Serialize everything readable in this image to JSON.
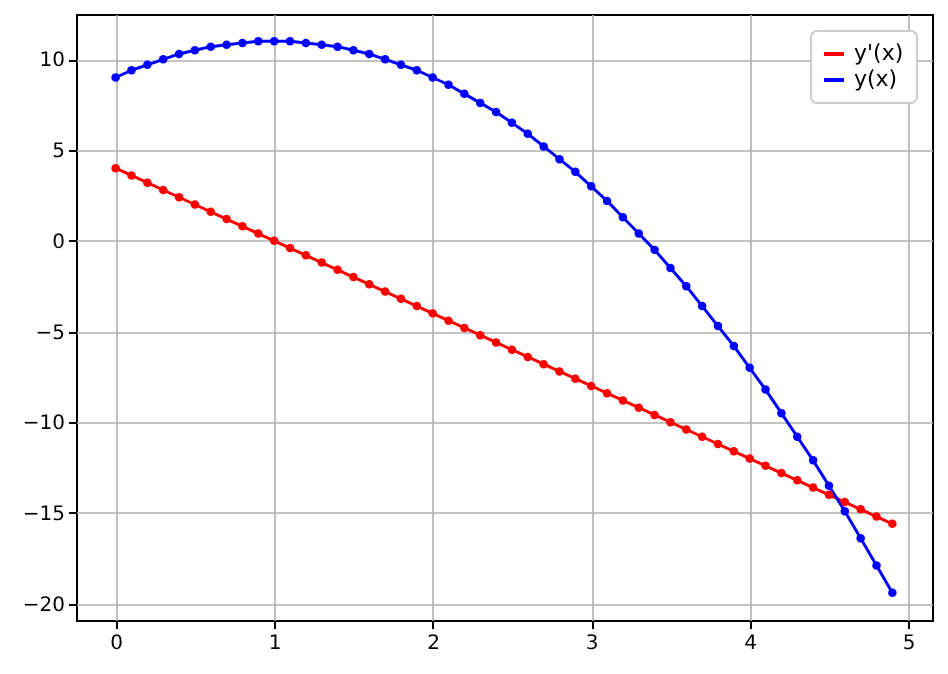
{
  "chart_data": {
    "type": "line",
    "x": [
      0,
      0.1,
      0.2,
      0.3,
      0.4,
      0.5,
      0.6,
      0.7,
      0.8,
      0.9,
      1,
      1.1,
      1.2,
      1.3,
      1.4,
      1.5,
      1.6,
      1.7,
      1.8,
      1.9,
      2,
      2.1,
      2.2,
      2.3,
      2.4,
      2.5,
      2.6,
      2.7,
      2.8,
      2.9,
      3,
      3.1,
      3.2,
      3.3,
      3.4,
      3.5,
      3.6,
      3.7,
      3.8,
      3.9,
      4,
      4.1,
      4.2,
      4.3,
      4.4,
      4.5,
      4.6,
      4.7,
      4.8,
      4.9
    ],
    "series": [
      {
        "name": "y'(x)",
        "color": "#ff0000",
        "values": [
          4,
          3.6,
          3.2,
          2.8,
          2.4,
          2,
          1.6,
          1.2,
          0.8,
          0.4,
          0,
          -0.4,
          -0.8,
          -1.2,
          -1.6,
          -2,
          -2.4,
          -2.8,
          -3.2,
          -3.6,
          -4,
          -4.4,
          -4.8,
          -5.2,
          -5.6,
          -6,
          -6.4,
          -6.8,
          -7.2,
          -7.6,
          -8,
          -8.4,
          -8.8,
          -9.2,
          -9.6,
          -10,
          -10.4,
          -10.8,
          -11.2,
          -11.6,
          -12,
          -12.4,
          -12.8,
          -13.2,
          -13.6,
          -14,
          -14.4,
          -14.8,
          -15.2,
          -15.6
        ]
      },
      {
        "name": "y(x)",
        "color": "#0000ff",
        "values": [
          9,
          9.4,
          9.7,
          10,
          10.3,
          10.5,
          10.7,
          10.8,
          10.9,
          11,
          11,
          11,
          10.9,
          10.8,
          10.7,
          10.5,
          10.3,
          10,
          9.7,
          9.4,
          9,
          8.6,
          8.1,
          7.6,
          7.1,
          6.5,
          5.9,
          5.2,
          4.5,
          3.8,
          3,
          2.2,
          1.3,
          0.4,
          -0.5,
          -1.5,
          -2.5,
          -3.6,
          -4.7,
          -5.8,
          -7,
          -8.2,
          -9.5,
          -10.8,
          -12.1,
          -13.5,
          -14.9,
          -16.4,
          -17.9,
          -19.4
        ]
      }
    ],
    "xlim": [
      -0.25,
      5.15
    ],
    "xticks": [
      0,
      1,
      2,
      3,
      4,
      5
    ],
    "ylim": [
      -20.9,
      12.5
    ],
    "yticks": [
      -20,
      -15,
      -10,
      -5,
      0,
      5,
      10
    ],
    "grid": true,
    "legend": "top right",
    "marker": "circle",
    "line_style": "solid"
  }
}
